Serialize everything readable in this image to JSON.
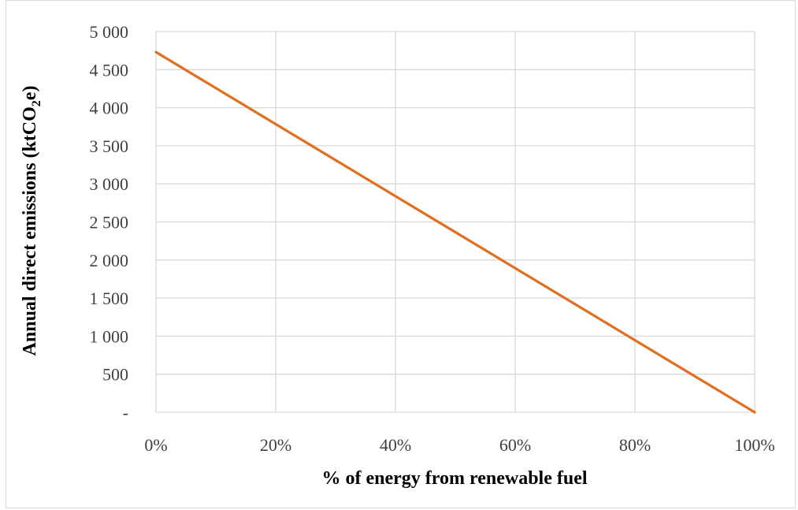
{
  "chart_data": {
    "type": "line",
    "title": "",
    "xlabel": "% of energy from renewable fuel",
    "ylabel": {
      "main": "Annual direct emissions (ktCO",
      "sub": "2",
      "tail": "e)"
    },
    "x": [
      0,
      20,
      40,
      60,
      80,
      100
    ],
    "x_tick_labels": [
      "0%",
      "20%",
      "40%",
      "60%",
      "80%",
      "100%"
    ],
    "xlim": [
      0,
      100
    ],
    "ylim": [
      0,
      5000
    ],
    "y_ticks": [
      0,
      500,
      1000,
      1500,
      2000,
      2500,
      3000,
      3500,
      4000,
      4500,
      5000
    ],
    "y_tick_labels": [
      "-",
      "500",
      "1 000",
      "1 500",
      "2 000",
      "2 500",
      "3 000",
      "3 500",
      "4 000",
      "4 500",
      "5 000"
    ],
    "series": [
      {
        "values": [
          4730,
          3784,
          2838,
          1892,
          946,
          0
        ],
        "color": "#e07020"
      }
    ],
    "grid": true,
    "legend": "none"
  }
}
